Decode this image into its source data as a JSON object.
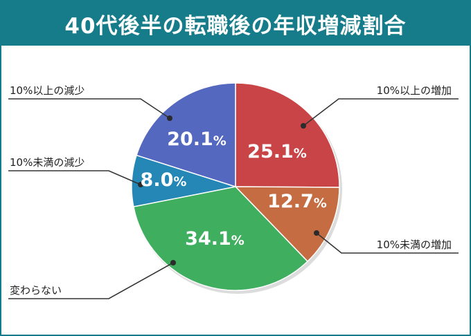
{
  "title": "40代後半の転職後の年収増減割合",
  "chart_data": {
    "type": "pie",
    "title": "40代後半の転職後の年収増減割合",
    "slices": [
      {
        "label": "10%以上の増加",
        "value": 25.1,
        "display": "25.1%",
        "color": "#c94446"
      },
      {
        "label": "10%未満の増加",
        "value": 12.7,
        "display": "12.7%",
        "color": "#c56c42"
      },
      {
        "label": "変わらない",
        "value": 34.1,
        "display": "34.1%",
        "color": "#3fae5e"
      },
      {
        "label": "10%未満の減少",
        "value": 8.0,
        "display": "8.0%",
        "color": "#2487b6"
      },
      {
        "label": "10%以上の減少",
        "value": 20.1,
        "display": "20.1%",
        "color": "#5468c0"
      }
    ],
    "start": "12 o'clock",
    "direction": "clockwise"
  }
}
